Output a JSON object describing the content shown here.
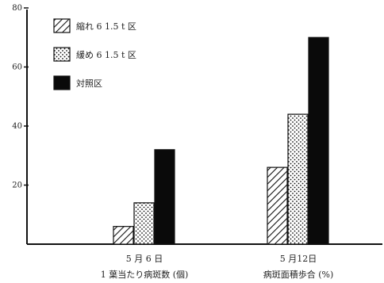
{
  "chart_data": {
    "type": "bar",
    "ylim": [
      0,
      80
    ],
    "yticks": [
      20,
      40,
      60,
      80
    ],
    "grid": false,
    "legend_position": "top-left",
    "categories": [
      {
        "label": "5 月 6 日",
        "sublabel": "1 葉当たり病斑数 (個)"
      },
      {
        "label": "5 月12日",
        "sublabel": "病斑面積歩合 (%)"
      }
    ],
    "series": [
      {
        "name": "縮れ 6 1.5 t 区",
        "pattern": "hatch",
        "values": [
          6,
          26
        ]
      },
      {
        "name": "緩め 6 1.5 t 区",
        "pattern": "dots",
        "values": [
          14,
          44
        ]
      },
      {
        "name": "対照区",
        "pattern": "solid",
        "values": [
          32,
          70
        ]
      }
    ]
  }
}
